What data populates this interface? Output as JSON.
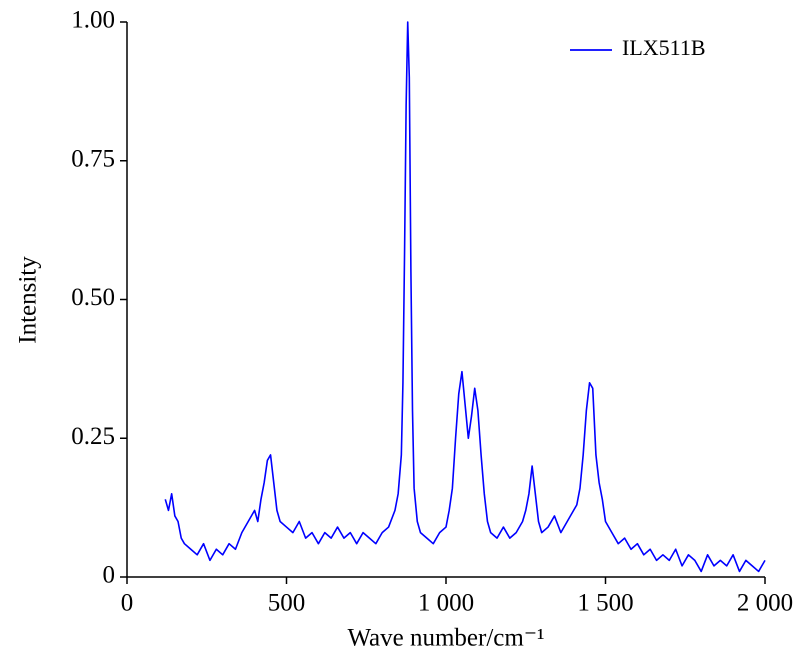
{
  "chart_data": {
    "type": "line",
    "xlabel": "Wave number/cm⁻¹",
    "ylabel": "Intensity",
    "xlim": [
      0,
      2000
    ],
    "ylim": [
      0,
      1
    ],
    "xticks": [
      0,
      500,
      {
        "value": 1000,
        "label": "1 000"
      },
      {
        "value": 1500,
        "label": "1 500"
      },
      {
        "value": 2000,
        "label": "2 000"
      }
    ],
    "yticks": [
      0,
      0.25,
      {
        "value": 0.5,
        "label": "0.50"
      },
      0.75,
      {
        "value": 1,
        "label": "1.00"
      }
    ],
    "legend": "upper right",
    "x": [
      120,
      130,
      140,
      150,
      160,
      170,
      180,
      200,
      220,
      240,
      260,
      280,
      300,
      320,
      340,
      360,
      380,
      400,
      410,
      420,
      430,
      440,
      450,
      460,
      470,
      480,
      500,
      520,
      540,
      560,
      580,
      600,
      620,
      640,
      660,
      680,
      700,
      720,
      740,
      760,
      780,
      800,
      820,
      840,
      850,
      860,
      865,
      870,
      875,
      880,
      885,
      890,
      895,
      900,
      910,
      920,
      940,
      960,
      980,
      1000,
      1010,
      1020,
      1030,
      1040,
      1050,
      1060,
      1070,
      1080,
      1090,
      1100,
      1110,
      1120,
      1130,
      1140,
      1160,
      1180,
      1200,
      1220,
      1240,
      1250,
      1260,
      1270,
      1280,
      1290,
      1300,
      1320,
      1340,
      1360,
      1380,
      1400,
      1410,
      1420,
      1430,
      1440,
      1450,
      1460,
      1470,
      1480,
      1490,
      1500,
      1520,
      1540,
      1560,
      1580,
      1600,
      1620,
      1640,
      1660,
      1680,
      1700,
      1720,
      1740,
      1760,
      1780,
      1800,
      1820,
      1840,
      1860,
      1880,
      1900,
      1920,
      1940,
      1960,
      1980,
      2000
    ],
    "series": [
      {
        "name": "ILX511B",
        "color": "#0000ff",
        "values": [
          0.14,
          0.12,
          0.15,
          0.11,
          0.1,
          0.07,
          0.06,
          0.05,
          0.04,
          0.06,
          0.03,
          0.05,
          0.04,
          0.06,
          0.05,
          0.08,
          0.1,
          0.12,
          0.1,
          0.14,
          0.17,
          0.21,
          0.22,
          0.17,
          0.12,
          0.1,
          0.09,
          0.08,
          0.1,
          0.07,
          0.08,
          0.06,
          0.08,
          0.07,
          0.09,
          0.07,
          0.08,
          0.06,
          0.08,
          0.07,
          0.06,
          0.08,
          0.09,
          0.12,
          0.15,
          0.22,
          0.35,
          0.58,
          0.85,
          1.0,
          0.9,
          0.55,
          0.3,
          0.16,
          0.1,
          0.08,
          0.07,
          0.06,
          0.08,
          0.09,
          0.12,
          0.16,
          0.25,
          0.33,
          0.37,
          0.31,
          0.25,
          0.29,
          0.34,
          0.3,
          0.22,
          0.15,
          0.1,
          0.08,
          0.07,
          0.09,
          0.07,
          0.08,
          0.1,
          0.12,
          0.15,
          0.2,
          0.15,
          0.1,
          0.08,
          0.09,
          0.11,
          0.08,
          0.1,
          0.12,
          0.13,
          0.16,
          0.22,
          0.3,
          0.35,
          0.34,
          0.22,
          0.17,
          0.14,
          0.1,
          0.08,
          0.06,
          0.07,
          0.05,
          0.06,
          0.04,
          0.05,
          0.03,
          0.04,
          0.03,
          0.05,
          0.02,
          0.04,
          0.03,
          0.01,
          0.04,
          0.02,
          0.03,
          0.02,
          0.04,
          0.01,
          0.03,
          0.02,
          0.01,
          0.03
        ]
      }
    ]
  }
}
